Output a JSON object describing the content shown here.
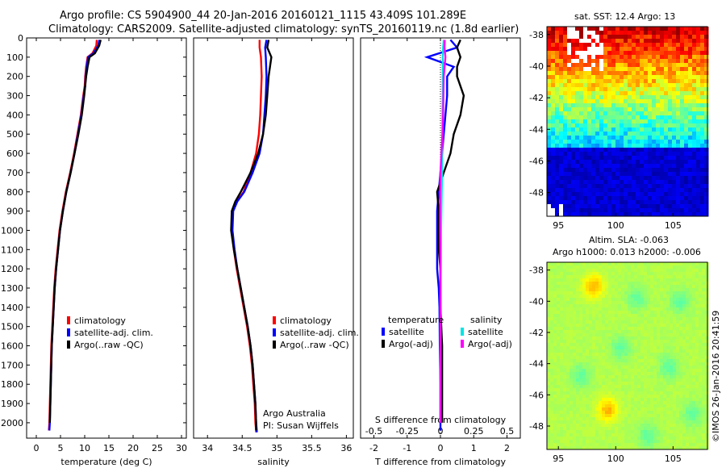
{
  "header": {
    "title_line1": "Argo profile: CS 5904900_44 20-Jan-2016 20160121_1115 43.409S 101.289E",
    "title_line2": "Climatology: CARS2009. Satellite-adjusted climatology: synTS_20160119.nc (1.8d earlier)"
  },
  "colors": {
    "climatology": "#ff0000",
    "satellite": "#0000ff",
    "argo": "#000000",
    "sat_salinity": "#00e5e5",
    "argo_salinity": "#ff00ff"
  },
  "annotations": {
    "argo_center": "Argo Australia",
    "pi": "PI: Susan Wijffels",
    "sst_title": "sat. SST: 12.4 Argo: 13",
    "sla_line1": "Altim. SLA: -0.063",
    "sla_line2": "Argo h1000: 0.013 h2000: -0.006",
    "imos_stamp": "©IMOS 26-Jan-2016 20:41:59"
  },
  "chart_data": [
    {
      "type": "line",
      "xlabel": "temperature (deg C)",
      "ylabel": "",
      "xlim": [
        -2,
        31
      ],
      "ylim": [
        2080,
        0
      ],
      "xticks": [
        0,
        5,
        10,
        15,
        20,
        25,
        30
      ],
      "yticks": [
        0,
        100,
        200,
        300,
        400,
        500,
        600,
        700,
        800,
        900,
        1000,
        1100,
        1200,
        1300,
        1400,
        1500,
        1600,
        1700,
        1800,
        1900,
        2000
      ],
      "legend": [
        "climatology",
        "satellite-adj. clim.",
        "Argo(..raw -QC)"
      ],
      "series": [
        {
          "name": "climatology",
          "color": "#ff0000",
          "x": [
            12.5,
            12.4,
            11.6,
            10.6,
            10.3,
            10.1,
            10.0,
            9.7,
            9.2,
            8.5,
            7.8,
            7.0,
            6.1,
            5.4,
            4.8,
            4.4,
            4.0,
            3.7,
            3.5,
            3.3,
            3.1,
            3.0,
            2.9,
            2.8,
            2.7,
            2.6
          ],
          "y": [
            10,
            40,
            80,
            100,
            150,
            200,
            250,
            300,
            400,
            500,
            600,
            700,
            800,
            900,
            1000,
            1100,
            1200,
            1300,
            1400,
            1500,
            1600,
            1700,
            1800,
            1900,
            2000,
            2040
          ]
        },
        {
          "name": "satellite-adj. clim.",
          "color": "#0000ff",
          "x": [
            13.0,
            12.8,
            11.8,
            10.7,
            10.4,
            10.2,
            10.1,
            9.8,
            9.3,
            8.6,
            7.9,
            7.1,
            6.2,
            5.5,
            4.9,
            4.5,
            4.1,
            3.8,
            3.6,
            3.4,
            3.2,
            3.1,
            3.0,
            2.9,
            2.8,
            2.7
          ],
          "y": [
            10,
            40,
            80,
            100,
            150,
            200,
            250,
            300,
            400,
            500,
            600,
            700,
            800,
            900,
            1000,
            1100,
            1200,
            1300,
            1400,
            1500,
            1600,
            1700,
            1800,
            1900,
            2000,
            2040
          ]
        },
        {
          "name": "Argo(..raw -QC)",
          "color": "#000000",
          "x": [
            13.3,
            13.0,
            12.1,
            11.0,
            10.6,
            10.3,
            10.1,
            9.9,
            9.4,
            8.7,
            7.9,
            7.1,
            6.2,
            5.5,
            4.9,
            4.5,
            4.1,
            3.8,
            3.6,
            3.4,
            3.2,
            3.1,
            3.0,
            2.9,
            2.8
          ],
          "y": [
            10,
            40,
            80,
            100,
            150,
            200,
            250,
            300,
            400,
            500,
            600,
            700,
            800,
            900,
            1000,
            1100,
            1200,
            1300,
            1400,
            1500,
            1600,
            1700,
            1800,
            1900,
            2000
          ]
        }
      ]
    },
    {
      "type": "line",
      "xlabel": "salinity",
      "xlim": [
        33.8,
        36.1
      ],
      "ylim": [
        2080,
        0
      ],
      "xticks": [
        34,
        34.5,
        35,
        35.5,
        36
      ],
      "legend": [
        "climatology",
        "satellite-adj. clim.",
        "Argo(..raw -QC)"
      ],
      "series": [
        {
          "name": "climatology",
          "color": "#ff0000",
          "x": [
            34.75,
            34.75,
            34.77,
            34.78,
            34.77,
            34.76,
            34.74,
            34.7,
            34.62,
            34.52,
            34.42,
            34.36,
            34.35,
            34.38,
            34.42,
            34.47,
            34.52,
            34.57,
            34.61,
            34.64,
            34.66,
            34.68,
            34.69,
            34.7,
            34.7
          ],
          "y": [
            10,
            50,
            100,
            200,
            300,
            400,
            500,
            600,
            700,
            800,
            850,
            900,
            1000,
            1100,
            1200,
            1300,
            1400,
            1500,
            1600,
            1700,
            1800,
            1900,
            2000,
            2040,
            2050
          ]
        },
        {
          "name": "satellite-adj. clim.",
          "color": "#0000ff",
          "x": [
            34.85,
            34.83,
            34.84,
            34.85,
            34.84,
            34.82,
            34.8,
            34.75,
            34.65,
            34.53,
            34.43,
            34.37,
            34.36,
            34.39,
            34.43,
            34.48,
            34.53,
            34.58,
            34.62,
            34.65,
            34.67,
            34.69,
            34.7,
            34.71,
            34.71
          ],
          "y": [
            10,
            50,
            100,
            200,
            300,
            400,
            500,
            600,
            700,
            800,
            850,
            900,
            1000,
            1100,
            1200,
            1300,
            1400,
            1500,
            1600,
            1700,
            1800,
            1900,
            2000,
            2040,
            2050
          ]
        },
        {
          "name": "Argo(..raw -QC)",
          "color": "#000000",
          "x": [
            34.88,
            34.86,
            34.92,
            34.88,
            34.86,
            34.84,
            34.8,
            34.73,
            34.62,
            34.48,
            34.4,
            34.35,
            34.34,
            34.38,
            34.43,
            34.48,
            34.53,
            34.58,
            34.62,
            34.65,
            34.67,
            34.69,
            34.7,
            34.7
          ],
          "y": [
            10,
            50,
            100,
            200,
            300,
            400,
            500,
            600,
            700,
            800,
            850,
            900,
            1000,
            1100,
            1200,
            1300,
            1400,
            1500,
            1600,
            1700,
            1800,
            1900,
            2000,
            2040
          ]
        }
      ]
    },
    {
      "type": "line",
      "xlabel": "T difference from climatology",
      "xlabel_top": "S difference from climatology",
      "xlim": [
        -2.4,
        2.4
      ],
      "ylim": [
        2080,
        0
      ],
      "xticks": [
        -2,
        -1,
        0,
        1,
        2
      ],
      "xticks_top": [
        -0.5,
        -0.25,
        0,
        0.25,
        0.5
      ],
      "legend_headers": [
        "temperature",
        "salinity"
      ],
      "legend": [
        "satellite",
        "Argo(-adj)",
        "satellite",
        "Argo(-adj)"
      ],
      "series": [
        {
          "name": "temperature satellite",
          "color": "#0000ff",
          "x": [
            0.3,
            0.5,
            -0.4,
            0.4,
            0.2,
            0.2,
            0.15,
            0.1,
            0.05,
            0.0,
            -0.05,
            -0.1,
            -0.1,
            -0.1,
            -0.1,
            -0.05,
            -0.03,
            -0.02,
            0.0,
            0.0,
            0.0
          ],
          "y": [
            10,
            50,
            100,
            150,
            200,
            300,
            400,
            500,
            600,
            700,
            800,
            900,
            1000,
            1100,
            1200,
            1300,
            1400,
            1600,
            1800,
            2000,
            2040
          ]
        },
        {
          "name": "temperature Argo(-adj)",
          "color": "#000000",
          "x": [
            0.6,
            0.5,
            0.6,
            0.5,
            0.5,
            0.7,
            0.6,
            0.4,
            0.3,
            0.1,
            -0.1,
            -0.05,
            -0.05,
            -0.05,
            0.0,
            0.0,
            0.05,
            0.05,
            0.05,
            0.05
          ],
          "y": [
            10,
            50,
            100,
            150,
            200,
            300,
            400,
            500,
            600,
            700,
            800,
            900,
            1000,
            1100,
            1200,
            1400,
            1600,
            1800,
            1900,
            2000
          ]
        },
        {
          "name": "salinity satellite",
          "color": "#00e5e5",
          "x": [
            0.1,
            0.08,
            0.07,
            0.07,
            0.07,
            0.06,
            0.06,
            0.05,
            0.05,
            0.04,
            0.03,
            0.02,
            0.01,
            0.0,
            0.0,
            0.0,
            0.0
          ],
          "y": [
            10,
            50,
            100,
            200,
            300,
            400,
            500,
            600,
            700,
            800,
            900,
            1000,
            1200,
            1400,
            1600,
            1800,
            2000
          ]
        },
        {
          "name": "salinity Argo(-adj)",
          "color": "#ff00ff",
          "x": [
            0.13,
            0.12,
            0.15,
            0.1,
            0.09,
            0.08,
            0.06,
            0.03,
            0.0,
            -0.01,
            -0.01,
            -0.01,
            0.0,
            0.0,
            0.0,
            0.0,
            0.0
          ],
          "y": [
            10,
            50,
            100,
            200,
            300,
            400,
            500,
            600,
            700,
            800,
            900,
            1000,
            1200,
            1400,
            1600,
            1800,
            2000
          ]
        }
      ]
    },
    {
      "type": "heatmap",
      "title": "sat. SST: 12.4 Argo: 13",
      "xlim": [
        94,
        108
      ],
      "ylim": [
        -49.5,
        -37.5
      ],
      "xticks": [
        95,
        100,
        105
      ],
      "yticks": [
        -38,
        -40,
        -42,
        -44,
        -46,
        -48
      ]
    },
    {
      "type": "heatmap",
      "title": "Altim. SLA: -0.063",
      "xlim": [
        94,
        108
      ],
      "ylim": [
        -49.5,
        -37.5
      ],
      "xticks": [
        95,
        100,
        105
      ],
      "yticks": [
        -38,
        -40,
        -42,
        -44,
        -46,
        -48
      ]
    }
  ]
}
